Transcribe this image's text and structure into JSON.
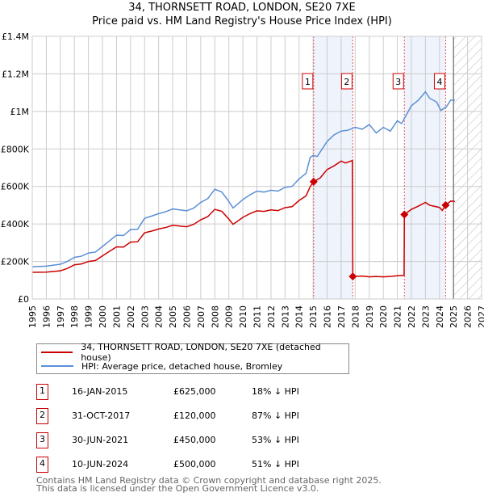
{
  "title": "34, THORNSETT ROAD, LONDON, SE20 7XE",
  "subtitle": "Price paid vs. HM Land Registry's House Price Index (HPI)",
  "colors": {
    "price": "#cc0000",
    "hpi": "#5b8fd6",
    "shade": "#eef3fc"
  },
  "chart_data": {
    "type": "line",
    "xlim": [
      1995,
      2027
    ],
    "ylim": [
      0,
      1400000
    ],
    "x_ticks": [
      "1995",
      "1996",
      "1997",
      "1998",
      "1999",
      "2000",
      "2001",
      "2002",
      "2003",
      "2004",
      "2005",
      "2006",
      "2007",
      "2008",
      "2009",
      "2010",
      "2011",
      "2012",
      "2013",
      "2014",
      "2015",
      "2016",
      "2017",
      "2018",
      "2019",
      "2020",
      "2021",
      "2022",
      "2023",
      "2024",
      "2025",
      "2026",
      "2027"
    ],
    "y_ticks": [
      {
        "v": 0,
        "label": "£0"
      },
      {
        "v": 200000,
        "label": "£200K"
      },
      {
        "v": 400000,
        "label": "£400K"
      },
      {
        "v": 600000,
        "label": "£600K"
      },
      {
        "v": 800000,
        "label": "£800K"
      },
      {
        "v": 1000000,
        "label": "£1M"
      },
      {
        "v": 1200000,
        "label": "£1.2M"
      },
      {
        "v": 1400000,
        "label": "£1.4M"
      }
    ],
    "shaded": [
      [
        2015.04,
        2017.83
      ],
      [
        2021.5,
        2024.44
      ]
    ],
    "forecast_from": 2025.0,
    "series": [
      {
        "name": "34, THORNSETT ROAD, LONDON, SE20 7XE (detached house)",
        "color": "#cc0000",
        "points": [
          [
            1995,
            142000
          ],
          [
            1996,
            143000
          ],
          [
            1997,
            150000
          ],
          [
            1997.5,
            163000
          ],
          [
            1998,
            182000
          ],
          [
            1998.5,
            187000
          ],
          [
            1999,
            200000
          ],
          [
            1999.5,
            205000
          ],
          [
            2000,
            230000
          ],
          [
            2000.5,
            254000
          ],
          [
            2001,
            278000
          ],
          [
            2001.5,
            277000
          ],
          [
            2002,
            303000
          ],
          [
            2002.5,
            305000
          ],
          [
            2003,
            353000
          ],
          [
            2003.5,
            362000
          ],
          [
            2004,
            373000
          ],
          [
            2004.5,
            381000
          ],
          [
            2005,
            393000
          ],
          [
            2005.5,
            389000
          ],
          [
            2006,
            385000
          ],
          [
            2006.5,
            398000
          ],
          [
            2007,
            422000
          ],
          [
            2007.5,
            439000
          ],
          [
            2008,
            478000
          ],
          [
            2008.5,
            467000
          ],
          [
            2009,
            426000
          ],
          [
            2009.3,
            398000
          ],
          [
            2010,
            435000
          ],
          [
            2010.5,
            455000
          ],
          [
            2011,
            470000
          ],
          [
            2011.5,
            467000
          ],
          [
            2012,
            475000
          ],
          [
            2012.5,
            471000
          ],
          [
            2013,
            487000
          ],
          [
            2013.5,
            492000
          ],
          [
            2014,
            525000
          ],
          [
            2014.5,
            550000
          ],
          [
            2014.8,
            600000
          ],
          [
            2015.04,
            625000
          ],
          [
            2015.5,
            645000
          ],
          [
            2016,
            690000
          ],
          [
            2016.5,
            710000
          ],
          [
            2017,
            735000
          ],
          [
            2017.3,
            725000
          ],
          [
            2017.8,
            738000
          ],
          [
            2017.83,
            120000
          ],
          [
            2018.5,
            122000
          ],
          [
            2019,
            118000
          ],
          [
            2019.5,
            120000
          ],
          [
            2020,
            118000
          ],
          [
            2020.5,
            120000
          ],
          [
            2021,
            124000
          ],
          [
            2021.48,
            126000
          ],
          [
            2021.5,
            450000
          ],
          [
            2022,
            478000
          ],
          [
            2022.5,
            495000
          ],
          [
            2023,
            515000
          ],
          [
            2023.3,
            500000
          ],
          [
            2024,
            488000
          ],
          [
            2024.2,
            472000
          ],
          [
            2024.44,
            500000
          ],
          [
            2024.8,
            522000
          ],
          [
            2025.1,
            520000
          ]
        ]
      },
      {
        "name": "HPI: Average price, detached house, Bromley",
        "color": "#5b8fd6",
        "points": [
          [
            1995,
            172000
          ],
          [
            1996,
            175000
          ],
          [
            1997,
            185000
          ],
          [
            1997.5,
            200000
          ],
          [
            1998,
            222000
          ],
          [
            1998.5,
            228000
          ],
          [
            1999,
            245000
          ],
          [
            1999.5,
            250000
          ],
          [
            2000,
            280000
          ],
          [
            2000.5,
            310000
          ],
          [
            2001,
            340000
          ],
          [
            2001.5,
            338000
          ],
          [
            2002,
            370000
          ],
          [
            2002.5,
            372000
          ],
          [
            2003,
            430000
          ],
          [
            2003.5,
            442000
          ],
          [
            2004,
            455000
          ],
          [
            2004.5,
            465000
          ],
          [
            2005,
            480000
          ],
          [
            2005.5,
            475000
          ],
          [
            2006,
            470000
          ],
          [
            2006.5,
            485000
          ],
          [
            2007,
            515000
          ],
          [
            2007.5,
            535000
          ],
          [
            2008,
            585000
          ],
          [
            2008.5,
            570000
          ],
          [
            2009,
            520000
          ],
          [
            2009.3,
            485000
          ],
          [
            2010,
            530000
          ],
          [
            2010.5,
            555000
          ],
          [
            2011,
            575000
          ],
          [
            2011.5,
            570000
          ],
          [
            2012,
            580000
          ],
          [
            2012.5,
            575000
          ],
          [
            2013,
            595000
          ],
          [
            2013.5,
            600000
          ],
          [
            2014,
            640000
          ],
          [
            2014.5,
            670000
          ],
          [
            2014.8,
            755000
          ],
          [
            2015,
            765000
          ],
          [
            2015.3,
            760000
          ],
          [
            2016,
            840000
          ],
          [
            2016.5,
            875000
          ],
          [
            2017,
            895000
          ],
          [
            2017.5,
            900000
          ],
          [
            2018,
            915000
          ],
          [
            2018.5,
            905000
          ],
          [
            2019,
            930000
          ],
          [
            2019.5,
            885000
          ],
          [
            2020,
            915000
          ],
          [
            2020.5,
            895000
          ],
          [
            2021,
            950000
          ],
          [
            2021.3,
            935000
          ],
          [
            2022,
            1030000
          ],
          [
            2022.5,
            1060000
          ],
          [
            2023,
            1105000
          ],
          [
            2023.3,
            1070000
          ],
          [
            2023.8,
            1050000
          ],
          [
            2024.1,
            1005000
          ],
          [
            2024.5,
            1025000
          ],
          [
            2024.8,
            1060000
          ],
          [
            2025.1,
            1060000
          ]
        ]
      }
    ],
    "sales": [
      {
        "n": "1",
        "x": 2015.04,
        "y": 625000
      },
      {
        "n": "2",
        "x": 2017.83,
        "y": 120000
      },
      {
        "n": "3",
        "x": 2021.5,
        "y": 450000
      },
      {
        "n": "4",
        "x": 2024.44,
        "y": 500000
      }
    ]
  },
  "legend": {
    "price": "34, THORNSETT ROAD, LONDON, SE20 7XE (detached house)",
    "hpi": "HPI: Average price, detached house, Bromley"
  },
  "table": [
    {
      "n": "1",
      "date": "16-JAN-2015",
      "price": "£625,000",
      "hpi": "18% ↓ HPI"
    },
    {
      "n": "2",
      "date": "31-OCT-2017",
      "price": "£120,000",
      "hpi": "87% ↓ HPI"
    },
    {
      "n": "3",
      "date": "30-JUN-2021",
      "price": "£450,000",
      "hpi": "53% ↓ HPI"
    },
    {
      "n": "4",
      "date": "10-JUN-2024",
      "price": "£500,000",
      "hpi": "51% ↓ HPI"
    }
  ],
  "footer": {
    "line1": "Contains HM Land Registry data © Crown copyright and database right 2025.",
    "line2": "This data is licensed under the Open Government Licence v3.0."
  }
}
